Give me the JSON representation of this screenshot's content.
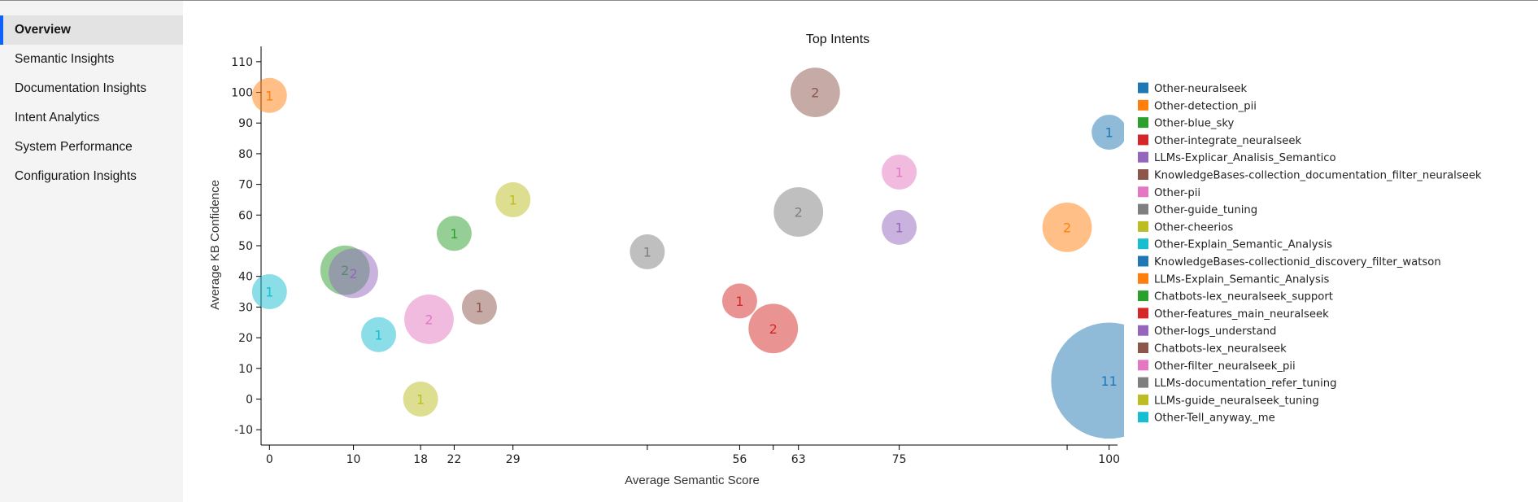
{
  "sidebar": {
    "items": [
      {
        "label": "Overview",
        "active": true
      },
      {
        "label": "Semantic Insights",
        "active": false
      },
      {
        "label": "Documentation Insights",
        "active": false
      },
      {
        "label": "Intent Analytics",
        "active": false
      },
      {
        "label": "System Performance",
        "active": false
      },
      {
        "label": "Configuration Insights",
        "active": false
      }
    ]
  },
  "chart_data": {
    "type": "scatter",
    "subtype": "bubble",
    "title": "Top Intents",
    "xlabel": "Average Semantic Score",
    "ylabel": "Average KB Confidence",
    "xlim": [
      -1,
      101
    ],
    "ylim": [
      -15,
      115
    ],
    "xticks": [
      0,
      10,
      18,
      22,
      29,
      45,
      56,
      60,
      63,
      75,
      95,
      100
    ],
    "xtick_labels": [
      "0",
      "10",
      "18",
      "22",
      "29",
      "",
      "56",
      "",
      "63",
      "75",
      "",
      "100"
    ],
    "yticks": [
      -10,
      0,
      10,
      20,
      30,
      40,
      50,
      60,
      70,
      80,
      90,
      100,
      110
    ],
    "grid": false,
    "legend_position": "right",
    "legend": [
      {
        "name": "Other-neuralseek",
        "color": "#1f77b4"
      },
      {
        "name": "Other-detection_pii",
        "color": "#ff7f0e"
      },
      {
        "name": "Other-blue_sky",
        "color": "#2ca02c"
      },
      {
        "name": "Other-integrate_neuralseek",
        "color": "#d62728"
      },
      {
        "name": "LLMs-Explicar_Analisis_Semantico",
        "color": "#9467bd"
      },
      {
        "name": "KnowledgeBases-collection_documentation_filter_neuralseek",
        "color": "#8c564b"
      },
      {
        "name": "Other-pii",
        "color": "#e377c2"
      },
      {
        "name": "Other-guide_tuning",
        "color": "#7f7f7f"
      },
      {
        "name": "Other-cheerios",
        "color": "#bcbd22"
      },
      {
        "name": "Other-Explain_Semantic_Analysis",
        "color": "#17becf"
      },
      {
        "name": "KnowledgeBases-collectionid_discovery_filter_watson",
        "color": "#1f77b4"
      },
      {
        "name": "LLMs-Explain_Semantic_Analysis",
        "color": "#ff7f0e"
      },
      {
        "name": "Chatbots-lex_neuralseek_support",
        "color": "#2ca02c"
      },
      {
        "name": "Other-features_main_neuralseek",
        "color": "#d62728"
      },
      {
        "name": "Other-logs_understand",
        "color": "#9467bd"
      },
      {
        "name": "Chatbots-lex_neuralseek",
        "color": "#8c564b"
      },
      {
        "name": "Other-filter_neuralseek_pii",
        "color": "#e377c2"
      },
      {
        "name": "LLMs-documentation_refer_tuning",
        "color": "#7f7f7f"
      },
      {
        "name": "LLMs-guide_neuralseek_tuning",
        "color": "#bcbd22"
      },
      {
        "name": "Other-Tell_anyway._me",
        "color": "#17becf"
      }
    ],
    "points": [
      {
        "x": 100,
        "y": 6,
        "count": 11,
        "color": "#1f77b4"
      },
      {
        "x": 0,
        "y": 99,
        "count": 1,
        "color": "#ff7f0e"
      },
      {
        "x": 9,
        "y": 42,
        "count": 2,
        "color": "#2ca02c"
      },
      {
        "x": 56,
        "y": 32,
        "count": 1,
        "color": "#d62728"
      },
      {
        "x": 10,
        "y": 41,
        "count": 2,
        "color": "#9467bd"
      },
      {
        "x": 65,
        "y": 100,
        "count": 2,
        "color": "#8c564b"
      },
      {
        "x": 19,
        "y": 26,
        "count": 2,
        "color": "#e377c2"
      },
      {
        "x": 45,
        "y": 48,
        "count": 1,
        "color": "#7f7f7f"
      },
      {
        "x": 18,
        "y": 0,
        "count": 1,
        "color": "#bcbd22"
      },
      {
        "x": 0,
        "y": 35,
        "count": 1,
        "color": "#17becf"
      },
      {
        "x": 100,
        "y": 87,
        "count": 1,
        "color": "#1f77b4"
      },
      {
        "x": 95,
        "y": 56,
        "count": 2,
        "color": "#ff7f0e"
      },
      {
        "x": 22,
        "y": 54,
        "count": 1,
        "color": "#2ca02c"
      },
      {
        "x": 60,
        "y": 23,
        "count": 2,
        "color": "#d62728"
      },
      {
        "x": 75,
        "y": 56,
        "count": 1,
        "color": "#9467bd"
      },
      {
        "x": 25,
        "y": 30,
        "count": 1,
        "color": "#8c564b"
      },
      {
        "x": 75,
        "y": 74,
        "count": 1,
        "color": "#e377c2"
      },
      {
        "x": 63,
        "y": 61,
        "count": 2,
        "color": "#7f7f7f"
      },
      {
        "x": 29,
        "y": 65,
        "count": 1,
        "color": "#bcbd22"
      },
      {
        "x": 13,
        "y": 21,
        "count": 1,
        "color": "#17becf"
      }
    ]
  }
}
